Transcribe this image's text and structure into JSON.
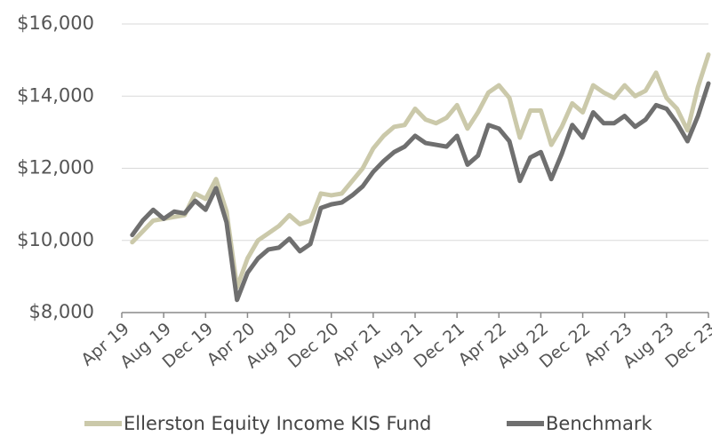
{
  "chart_data": {
    "type": "line",
    "categories": [
      "Apr 19",
      null,
      null,
      null,
      "Aug 19",
      null,
      null,
      null,
      "Dec 19",
      null,
      null,
      null,
      "Apr 20",
      null,
      null,
      null,
      "Aug 20",
      null,
      null,
      null,
      "Dec 20",
      null,
      null,
      null,
      "Apr 21",
      null,
      null,
      null,
      "Aug 21",
      null,
      null,
      null,
      "Dec 21",
      null,
      null,
      null,
      "Apr 22",
      null,
      null,
      null,
      "Aug 22",
      null,
      null,
      null,
      "Dec 22",
      null,
      null,
      null,
      "Apr 23",
      null,
      null,
      null,
      "Aug 23",
      null,
      null,
      null,
      "Dec 23"
    ],
    "series": [
      {
        "name": "Ellerston Equity Income KIS Fund",
        "color": "#cbc9aa",
        "values": [
          null,
          9950,
          10250,
          10550,
          10600,
          10650,
          10700,
          11300,
          11150,
          11700,
          10800,
          8700,
          9500,
          10000,
          10200,
          10400,
          10700,
          10450,
          10550,
          11300,
          11250,
          11300,
          11650,
          12000,
          12550,
          12900,
          13150,
          13200,
          13650,
          13350,
          13250,
          13400,
          13750,
          13100,
          13550,
          14100,
          14300,
          13950,
          12850,
          13600,
          13600,
          12650,
          13150,
          13800,
          13550,
          14300,
          14100,
          13950,
          14300,
          14000,
          14150,
          14650,
          13950,
          13650,
          13050,
          14250,
          15150
        ]
      },
      {
        "name": "Benchmark",
        "color": "#6f6f6f",
        "values": [
          null,
          10150,
          10550,
          10850,
          10600,
          10800,
          10750,
          11100,
          10850,
          11450,
          10500,
          8350,
          9100,
          9500,
          9750,
          9800,
          10050,
          9700,
          9900,
          10900,
          11000,
          11050,
          11250,
          11500,
          11900,
          12200,
          12450,
          12600,
          12900,
          12700,
          12650,
          12600,
          12900,
          12100,
          12350,
          13200,
          13100,
          12750,
          11650,
          12300,
          12450,
          11700,
          12400,
          13200,
          12850,
          13550,
          13250,
          13250,
          13450,
          13150,
          13350,
          13750,
          13650,
          13250,
          12750,
          13450,
          14350
        ]
      }
    ],
    "ylim": [
      8000,
      16000
    ],
    "yticks": [
      {
        "value": 8000,
        "label": "$8,000"
      },
      {
        "value": 10000,
        "label": "$10,000"
      },
      {
        "value": 12000,
        "label": "$12,000"
      },
      {
        "value": 14000,
        "label": "$14,000"
      },
      {
        "value": 16000,
        "label": "$16,000"
      }
    ],
    "grid": true,
    "legend": "bottom"
  }
}
